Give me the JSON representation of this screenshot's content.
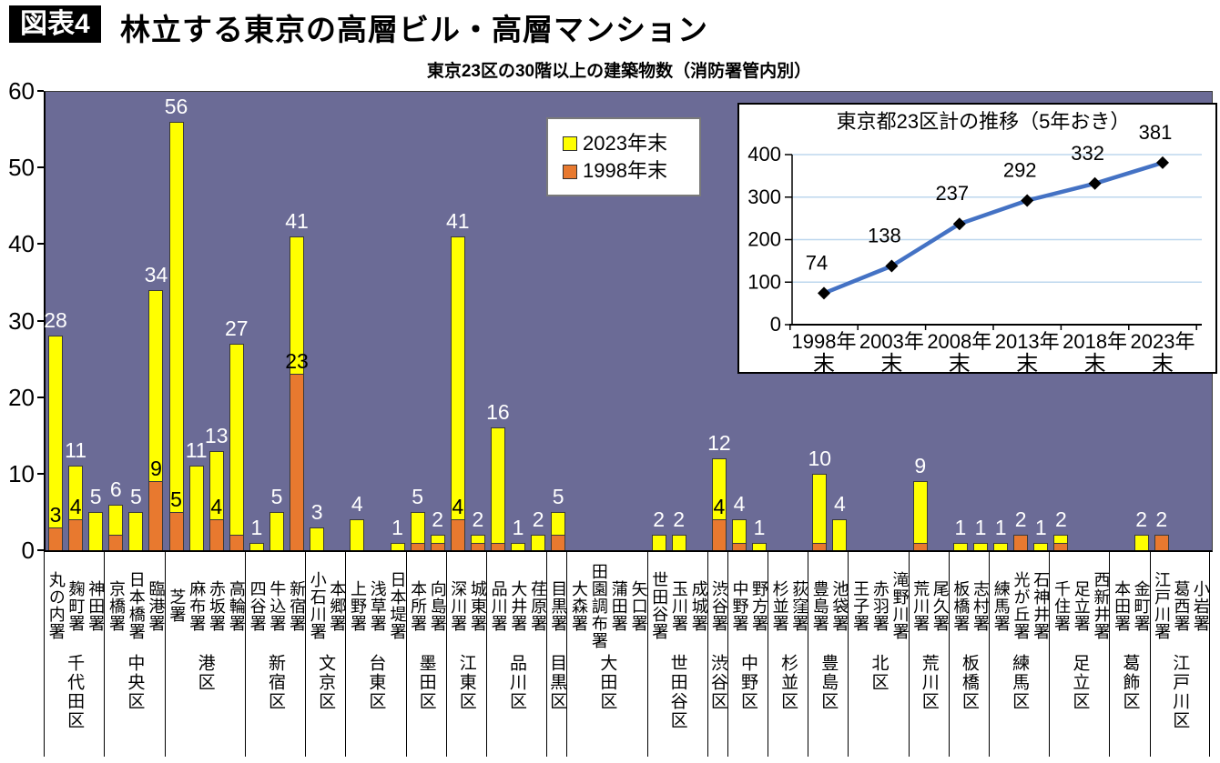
{
  "header": {
    "badge": "図表4",
    "title": "林立する東京の高層ビル・高層マンション",
    "subtitle": "東京23区の30階以上の建築物数（消防署管内別）"
  },
  "legend": {
    "items": [
      {
        "label": "2023年末",
        "color": "#FFFF00"
      },
      {
        "label": "1998年末",
        "color": "#E8792F"
      }
    ]
  },
  "colors": {
    "plot_background": "#6B6B96",
    "bar_2023": "#FFFF00",
    "bar_1998": "#E8792F",
    "inset_line": "#4472C4",
    "inset_grid": "#BDD7EE"
  },
  "chart_data": [
    {
      "type": "bar",
      "title": "東京23区の30階以上の建築物数（消防署管内別）",
      "ylim": [
        0,
        60
      ],
      "yticks": [
        0,
        10,
        20,
        30,
        40,
        50,
        60
      ],
      "grid": false,
      "series_names": [
        "2023年末",
        "1998年末"
      ],
      "label_rule": "white label above bar = 2023 value; black label above orange segment when 1998 value >= 3",
      "wards": [
        {
          "ward": "千代田区",
          "stations": [
            {
              "name": "丸の内署",
              "y2023": 28,
              "y1998": 3
            },
            {
              "name": "麹町署",
              "y2023": 11,
              "y1998": 4
            },
            {
              "name": "神田署",
              "y2023": 5,
              "y1998": 0
            }
          ]
        },
        {
          "ward": "中央区",
          "stations": [
            {
              "name": "京橋署",
              "y2023": 6,
              "y1998": 2
            },
            {
              "name": "日本橋署",
              "y2023": 5,
              "y1998": 0
            },
            {
              "name": "臨港署",
              "y2023": 34,
              "y1998": 9
            }
          ]
        },
        {
          "ward": "港区",
          "stations": [
            {
              "name": "芝署",
              "y2023": 56,
              "y1998": 5
            },
            {
              "name": "麻布署",
              "y2023": 11,
              "y1998": 0
            },
            {
              "name": "赤坂署",
              "y2023": 13,
              "y1998": 4
            },
            {
              "name": "高輪署",
              "y2023": 27,
              "y1998": 2
            }
          ]
        },
        {
          "ward": "新宿区",
          "stations": [
            {
              "name": "四谷署",
              "y2023": 1,
              "y1998": 0
            },
            {
              "name": "牛込署",
              "y2023": 5,
              "y1998": 0
            },
            {
              "name": "新宿署",
              "y2023": 41,
              "y1998": 23
            }
          ]
        },
        {
          "ward": "文京区",
          "stations": [
            {
              "name": "小石川署",
              "y2023": 3,
              "y1998": 0
            },
            {
              "name": "本郷署",
              "y2023": 0,
              "y1998": 0
            }
          ]
        },
        {
          "ward": "台東区",
          "stations": [
            {
              "name": "上野署",
              "y2023": 4,
              "y1998": 0
            },
            {
              "name": "浅草署",
              "y2023": 0,
              "y1998": 0
            },
            {
              "name": "日本堤署",
              "y2023": 1,
              "y1998": 0
            }
          ]
        },
        {
          "ward": "墨田区",
          "stations": [
            {
              "name": "本所署",
              "y2023": 5,
              "y1998": 1
            },
            {
              "name": "向島署",
              "y2023": 2,
              "y1998": 1
            }
          ]
        },
        {
          "ward": "江東区",
          "stations": [
            {
              "name": "深川署",
              "y2023": 41,
              "y1998": 4
            },
            {
              "name": "城東署",
              "y2023": 2,
              "y1998": 1
            }
          ]
        },
        {
          "ward": "品川区",
          "stations": [
            {
              "name": "品川署",
              "y2023": 16,
              "y1998": 1
            },
            {
              "name": "大井署",
              "y2023": 1,
              "y1998": 0
            },
            {
              "name": "荏原署",
              "y2023": 2,
              "y1998": 0
            }
          ]
        },
        {
          "ward": "目黒区",
          "stations": [
            {
              "name": "目黒署",
              "y2023": 5,
              "y1998": 2
            }
          ]
        },
        {
          "ward": "大田区",
          "stations": [
            {
              "name": "大森署",
              "y2023": 0,
              "y1998": 0
            },
            {
              "name": "田園調布署",
              "y2023": 0,
              "y1998": 0
            },
            {
              "name": "蒲田署",
              "y2023": 0,
              "y1998": 0
            },
            {
              "name": "矢口署",
              "y2023": 0,
              "y1998": 0
            }
          ]
        },
        {
          "ward": "世田谷区",
          "stations": [
            {
              "name": "世田谷署",
              "y2023": 2,
              "y1998": 0
            },
            {
              "name": "玉川署",
              "y2023": 2,
              "y1998": 0
            },
            {
              "name": "成城署",
              "y2023": 0,
              "y1998": 0
            }
          ]
        },
        {
          "ward": "渋谷区",
          "stations": [
            {
              "name": "渋谷署",
              "y2023": 12,
              "y1998": 4
            }
          ]
        },
        {
          "ward": "中野区",
          "stations": [
            {
              "name": "中野署",
              "y2023": 4,
              "y1998": 1
            },
            {
              "name": "野方署",
              "y2023": 1,
              "y1998": 0
            }
          ]
        },
        {
          "ward": "杉並区",
          "stations": [
            {
              "name": "杉並署",
              "y2023": 0,
              "y1998": 0
            },
            {
              "name": "荻窪署",
              "y2023": 0,
              "y1998": 0
            }
          ]
        },
        {
          "ward": "豊島区",
          "stations": [
            {
              "name": "豊島署",
              "y2023": 10,
              "y1998": 1
            },
            {
              "name": "池袋署",
              "y2023": 4,
              "y1998": 0
            }
          ]
        },
        {
          "ward": "北区",
          "stations": [
            {
              "name": "王子署",
              "y2023": 0,
              "y1998": 0
            },
            {
              "name": "赤羽署",
              "y2023": 0,
              "y1998": 0
            },
            {
              "name": "滝野川署",
              "y2023": 0,
              "y1998": 0
            }
          ]
        },
        {
          "ward": "荒川区",
          "stations": [
            {
              "name": "荒川署",
              "y2023": 9,
              "y1998": 1
            },
            {
              "name": "尾久署",
              "y2023": 0,
              "y1998": 0
            }
          ]
        },
        {
          "ward": "板橋区",
          "stations": [
            {
              "name": "板橋署",
              "y2023": 1,
              "y1998": 0
            },
            {
              "name": "志村署",
              "y2023": 1,
              "y1998": 0
            }
          ]
        },
        {
          "ward": "練馬区",
          "stations": [
            {
              "name": "練馬署",
              "y2023": 1,
              "y1998": 0
            },
            {
              "name": "光が丘署",
              "y2023": 2,
              "y1998": 2
            },
            {
              "name": "石神井署",
              "y2023": 1,
              "y1998": 0
            }
          ]
        },
        {
          "ward": "足立区",
          "stations": [
            {
              "name": "千住署",
              "y2023": 2,
              "y1998": 1
            },
            {
              "name": "足立署",
              "y2023": 0,
              "y1998": 0
            },
            {
              "name": "西新井署",
              "y2023": 0,
              "y1998": 0
            }
          ]
        },
        {
          "ward": "葛飾区",
          "stations": [
            {
              "name": "本田署",
              "y2023": 0,
              "y1998": 0
            },
            {
              "name": "金町署",
              "y2023": 2,
              "y1998": 0
            }
          ]
        },
        {
          "ward": "江戸川区",
          "stations": [
            {
              "name": "江戸川署",
              "y2023": 2,
              "y1998": 2
            },
            {
              "name": "葛西署",
              "y2023": 0,
              "y1998": 0
            },
            {
              "name": "小岩署",
              "y2023": 0,
              "y1998": 0
            }
          ]
        }
      ]
    },
    {
      "type": "line",
      "title": "東京都23区計の推移（5年おき）",
      "categories": [
        "1998年末",
        "2003年末",
        "2008年末",
        "2013年末",
        "2018年末",
        "2023年末"
      ],
      "values": [
        74,
        138,
        237,
        292,
        332,
        381
      ],
      "ylim": [
        0,
        400
      ],
      "yticks": [
        0,
        100,
        200,
        300,
        400
      ],
      "grid": true,
      "legend_position": "none",
      "line_color": "#4472C4",
      "marker": "diamond",
      "marker_color": "#000000",
      "gridline_color": "#BDD7EE"
    }
  ]
}
